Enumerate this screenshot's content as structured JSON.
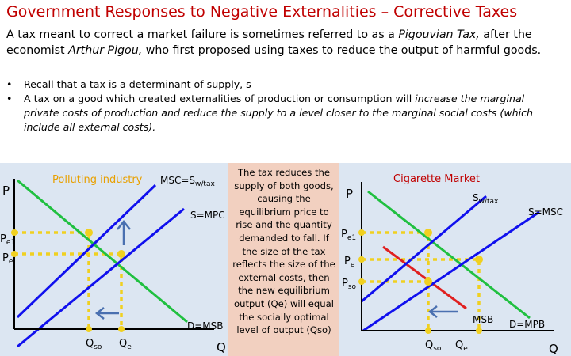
{
  "title": "Government Responses to Negative Externalities – Corrective Taxes",
  "intro": {
    "pre": "A tax meant to correct a market failure is sometimes referred to as a ",
    "term": "Pigouvian Tax,",
    "mid": " after the economist ",
    "person": "Arthur Pigou,",
    "post": " who first proposed using taxes to reduce the output of harmful goods."
  },
  "bullets": [
    {
      "dot": "•",
      "parts": [
        {
          "t": "Recall that a tax is a determinant of supply, s",
          "i": false
        }
      ]
    },
    {
      "dot": "•",
      "parts": [
        {
          "t": "A tax on a good which created externalities of production or consumption will ",
          "i": false
        },
        {
          "t": "increase the marginal private costs of production and reduce the supply to a level closer to the marginal social costs (which include all external costs).",
          "i": true
        }
      ]
    }
  ],
  "left_chart": {
    "title": "Polluting industry",
    "y_axis": "P",
    "x_axis": "Q",
    "price_labels": [
      {
        "main": "P",
        "sub": "e1"
      },
      {
        "main": "P",
        "sub": "e",
        "sep": " "
      }
    ],
    "qty_labels": [
      {
        "main": "Q",
        "sub": "so"
      },
      {
        "main": "Q",
        "sub": "e"
      }
    ],
    "curves": {
      "msc": {
        "main": "MSC=S",
        "sub": "w/tax"
      },
      "mpc": "S=MPC",
      "demand": "D=MSB"
    },
    "colors": {
      "background": "#dce6f2",
      "supply": "#1010ee",
      "demand": "#20c040",
      "axis": "#000000",
      "guide": "#f0d020",
      "arrow": "#4a70b0"
    }
  },
  "text_box": "The tax reduces the supply of both goods, causing the equilibrium price to rise and the quantity demanded to fall. If the size of the tax reflects the size of the external costs, then the new equilibrium output (Qe) will equal the socially optimal level of output (Qso)",
  "right_chart": {
    "title": "Cigarette Market",
    "y_axis": "P",
    "x_axis": "Q",
    "price_labels": [
      {
        "main": "P",
        "sub": "e1"
      },
      {
        "main": "P",
        "sub": "e"
      },
      {
        "main": "P",
        "sub": "so"
      }
    ],
    "qty_labels": [
      {
        "main": "Q",
        "sub": "so"
      },
      {
        "main": "Q",
        "sub": "e"
      }
    ],
    "curves": {
      "supply_tax": {
        "main": "S",
        "sub": "w/tax"
      },
      "msc": "S=MSC",
      "msb": "MSB",
      "mpb": "D=MPB"
    },
    "colors": {
      "background": "#dce6f2",
      "supply": "#1010ee",
      "demand": "#20c040",
      "msb": "#e02020",
      "axis": "#000000",
      "guide": "#f0d020",
      "arrow": "#4a70b0"
    }
  }
}
